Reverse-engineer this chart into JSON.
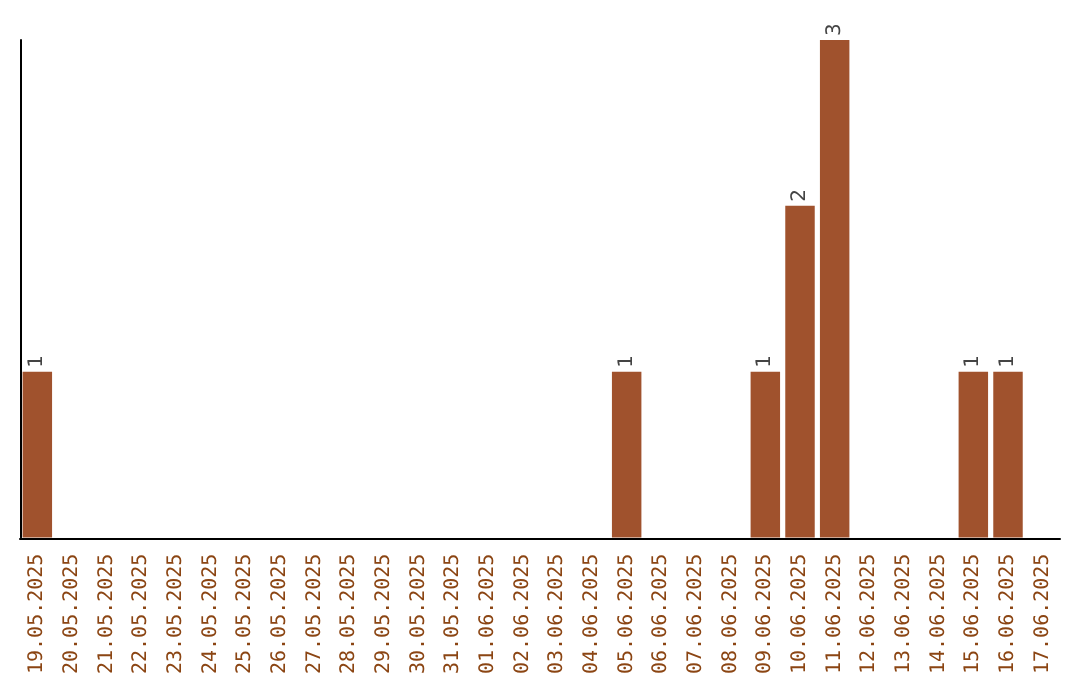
{
  "chart_data": {
    "type": "bar",
    "categories": [
      "19.05.2025",
      "20.05.2025",
      "21.05.2025",
      "22.05.2025",
      "23.05.2025",
      "24.05.2025",
      "25.05.2025",
      "26.05.2025",
      "27.05.2025",
      "28.05.2025",
      "29.05.2025",
      "30.05.2025",
      "31.05.2025",
      "01.06.2025",
      "02.06.2025",
      "03.06.2025",
      "04.06.2025",
      "05.06.2025",
      "06.06.2025",
      "07.06.2025",
      "08.06.2025",
      "09.06.2025",
      "10.06.2025",
      "11.06.2025",
      "12.06.2025",
      "13.06.2025",
      "14.06.2025",
      "15.06.2025",
      "16.06.2025",
      "17.06.2025"
    ],
    "values": [
      1,
      0,
      0,
      0,
      0,
      0,
      0,
      0,
      0,
      0,
      0,
      0,
      0,
      0,
      0,
      0,
      0,
      1,
      0,
      0,
      0,
      1,
      2,
      3,
      0,
      0,
      0,
      1,
      1,
      0
    ],
    "value_labels": [
      "1",
      null,
      null,
      null,
      null,
      null,
      null,
      null,
      null,
      null,
      null,
      null,
      null,
      null,
      null,
      null,
      null,
      "1",
      null,
      null,
      null,
      "1",
      "2",
      "3",
      null,
      null,
      null,
      "1",
      "1",
      null
    ],
    "color": "#a0522d",
    "ylim": [
      0,
      3
    ],
    "tick_labels": "x"
  }
}
